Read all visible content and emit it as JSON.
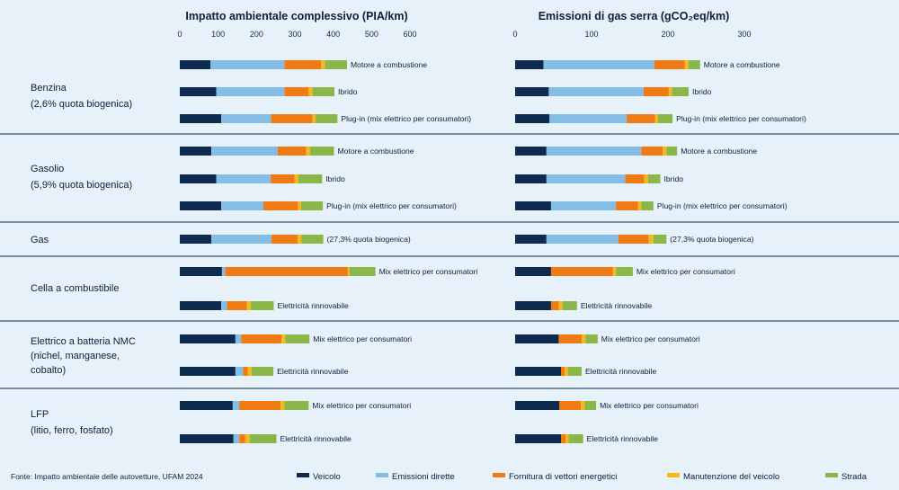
{
  "colors": {
    "background": "#e7f1f9",
    "divider": "#1b2b45",
    "text": "#0f1f3a",
    "series": [
      "#0e2a4f",
      "#84bee6",
      "#f07a14",
      "#f6b81b",
      "#8ab64a"
    ]
  },
  "groups": [
    {
      "name_lines": [
        "Benzina",
        "(2,6% quota biogenica)"
      ]
    },
    {
      "name_lines": [
        "Gasolio",
        "(5,9% quota biogenica)"
      ]
    },
    {
      "name_lines": [
        "Gas"
      ]
    },
    {
      "name_lines": [
        "Cella a combustibile"
      ]
    },
    {
      "name_lines": [
        "Elettrico a batteria NMC",
        "(nichel, manganese,",
        "cobalto)"
      ]
    },
    {
      "name_lines": [
        "LFP",
        "(litio, ferro, fosfato)"
      ]
    }
  ],
  "legend": {
    "items": [
      "Veicolo",
      "Emissioni dirette",
      "Fornitura di vettori energetici",
      "Manutenzione del veicolo",
      "Strada"
    ]
  },
  "footer": {
    "source": "Fonte: Impatto ambientale delle autovetture, UFAM 2024"
  },
  "chart_data": [
    {
      "type": "bar",
      "orientation": "horizontal",
      "stacked": true,
      "title": "Impatto ambientale complessivo (PIA/km)",
      "xlim": [
        0,
        600
      ],
      "ticks": [
        0,
        100,
        200,
        300,
        400,
        500,
        600
      ],
      "series_names": [
        "Veicolo",
        "Emissioni dirette",
        "Fornitura di vettori energetici",
        "Manutenzione del veicolo",
        "Strada"
      ],
      "rows": [
        {
          "group": 0,
          "label": "Motore a combustione",
          "values": [
            80,
            193,
            95,
            10,
            58
          ]
        },
        {
          "group": 0,
          "label": "Ibrido",
          "values": [
            95,
            178,
            63,
            10,
            57
          ]
        },
        {
          "group": 0,
          "label": "Plug-in (mix elettrico per consumatori)",
          "values": [
            108,
            130,
            108,
            8,
            57
          ]
        },
        {
          "group": 1,
          "label": "Motore a combustione",
          "values": [
            82,
            173,
            75,
            10,
            62
          ]
        },
        {
          "group": 1,
          "label": "Ibrido",
          "values": [
            95,
            142,
            62,
            10,
            62
          ]
        },
        {
          "group": 1,
          "label": "Plug-in (mix elettrico per consumatori)",
          "values": [
            108,
            110,
            90,
            8,
            57
          ]
        },
        {
          "group": 2,
          "label": "(27,3% quota biogenica)",
          "values": [
            82,
            157,
            68,
            10,
            57
          ]
        },
        {
          "group": 3,
          "label": "Mix elettrico per consumatori",
          "values": [
            110,
            8,
            320,
            5,
            67
          ]
        },
        {
          "group": 3,
          "label": "Elettricità rinnovabile",
          "values": [
            108,
            15,
            52,
            10,
            60
          ]
        },
        {
          "group": 4,
          "label": "Mix elettrico per consumatori",
          "values": [
            145,
            15,
            105,
            10,
            63
          ]
        },
        {
          "group": 4,
          "label": "Elettricità rinnovabile",
          "values": [
            145,
            20,
            12,
            10,
            57
          ]
        },
        {
          "group": 5,
          "label": "Mix elettrico per consumatori",
          "values": [
            138,
            17,
            108,
            10,
            63
          ]
        },
        {
          "group": 5,
          "label": "Elettricità rinnovabile",
          "values": [
            140,
            15,
            15,
            12,
            70
          ]
        }
      ]
    },
    {
      "type": "bar",
      "orientation": "horizontal",
      "stacked": true,
      "title": "Emissioni di gas serra (gCO₂eq/km)",
      "xlim": [
        0,
        300
      ],
      "ticks": [
        0,
        100,
        200,
        300
      ],
      "series_names": [
        "Veicolo",
        "Emissioni dirette",
        "Fornitura di vettori energetici",
        "Manutenzione del veicolo",
        "Strada"
      ],
      "rows": [
        {
          "group": 0,
          "label": "Motore a combustione",
          "values": [
            37,
            145,
            40,
            5,
            15
          ]
        },
        {
          "group": 0,
          "label": "Ibrido",
          "values": [
            44,
            124,
            33,
            4,
            22
          ]
        },
        {
          "group": 0,
          "label": "Plug-in (mix elettrico per consumatori)",
          "values": [
            45,
            101,
            37,
            4,
            19
          ]
        },
        {
          "group": 1,
          "label": "Motore a combustione",
          "values": [
            41,
            124,
            28,
            5,
            14
          ]
        },
        {
          "group": 1,
          "label": "Ibrido",
          "values": [
            41,
            103,
            25,
            5,
            16
          ]
        },
        {
          "group": 1,
          "label": "Plug-in (mix elettrico per consumatori)",
          "values": [
            47,
            85,
            29,
            4,
            16
          ]
        },
        {
          "group": 2,
          "label": "(27,3% quota biogenica)",
          "values": [
            41,
            94,
            40,
            6,
            17
          ]
        },
        {
          "group": 3,
          "label": "Mix elettrico per consumatori",
          "values": [
            47,
            0,
            81,
            4,
            22
          ]
        },
        {
          "group": 3,
          "label": "Elettricità rinnovabile",
          "values": [
            47,
            0,
            10,
            5,
            19
          ]
        },
        {
          "group": 4,
          "label": "Mix elettrico per consumatori",
          "values": [
            57,
            0,
            30,
            5,
            16
          ]
        },
        {
          "group": 4,
          "label": "Elettricità rinnovabile",
          "values": [
            60,
            0,
            5,
            4,
            18
          ]
        },
        {
          "group": 5,
          "label": "Mix elettrico per consumatori",
          "values": [
            58,
            0,
            28,
            5,
            15
          ]
        },
        {
          "group": 5,
          "label": "Elettricità rinnovabile",
          "values": [
            60,
            0,
            6,
            4,
            19
          ]
        }
      ]
    }
  ]
}
